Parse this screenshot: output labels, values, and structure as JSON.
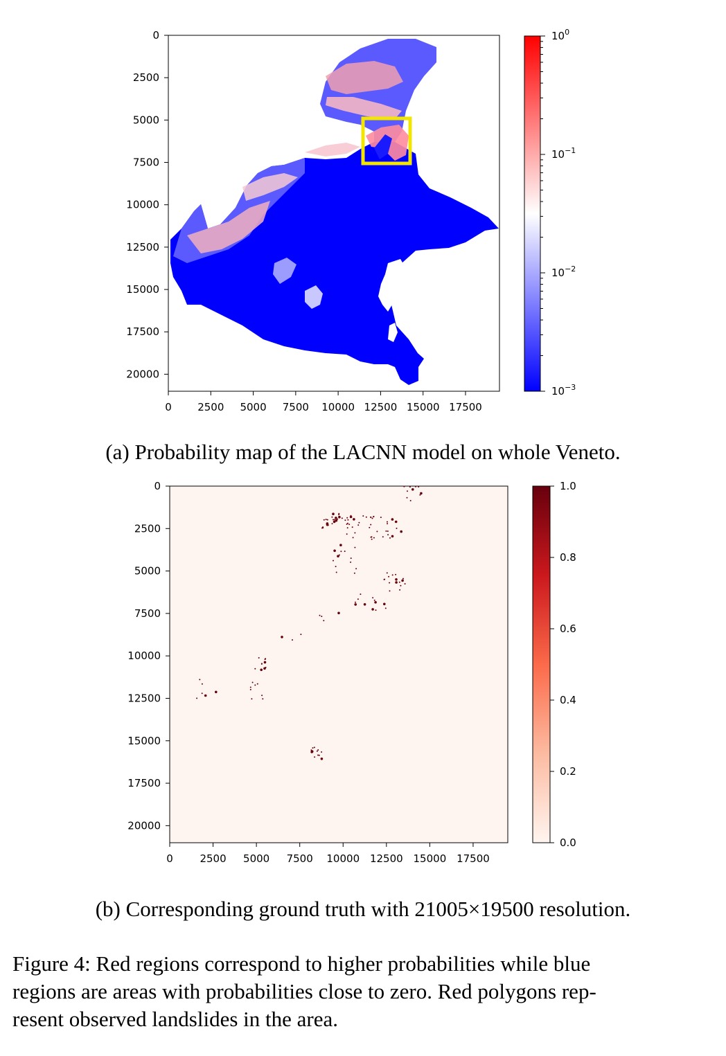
{
  "panel_a": {
    "caption": "(a) Probability map of the LACNN model on whole Veneto."
  },
  "panel_b": {
    "caption": "(b) Corresponding ground truth with 21005×19500 resolution."
  },
  "figure_caption": {
    "lines": [
      "Figure 4: Red regions correspond to higher probabilities while blue",
      "regions are areas with probabilities close to zero. Red polygons rep-",
      "resent observed landslides in the area."
    ]
  },
  "chart_data": [
    {
      "type": "heatmap",
      "title": "",
      "xlabel": "",
      "ylabel": "",
      "x_ticks": [
        "0",
        "2500",
        "5000",
        "7500",
        "10000",
        "12500",
        "15000",
        "17500"
      ],
      "y_ticks": [
        "0",
        "2500",
        "5000",
        "7500",
        "10000",
        "12500",
        "15000",
        "17500",
        "20000"
      ],
      "xlim": [
        0,
        19500
      ],
      "ylim": [
        21005,
        0
      ],
      "colorbar": {
        "scale": "log",
        "range": [
          0.001,
          1
        ],
        "ticks": [
          "10^0",
          "10^-1",
          "10^-2",
          "10^-3"
        ],
        "colormap": "bwr",
        "colors": [
          "#0000ff",
          "#ffffff",
          "#ff0000"
        ]
      },
      "highlight_box": {
        "color": "#f2e600"
      }
    },
    {
      "type": "heatmap",
      "title": "",
      "xlabel": "",
      "ylabel": "",
      "x_ticks": [
        "0",
        "2500",
        "5000",
        "7500",
        "10000",
        "12500",
        "15000",
        "17500"
      ],
      "y_ticks": [
        "0",
        "2500",
        "5000",
        "7500",
        "10000",
        "12500",
        "15000",
        "17500",
        "20000"
      ],
      "xlim": [
        0,
        19500
      ],
      "ylim": [
        21005,
        0
      ],
      "colorbar": {
        "scale": "linear",
        "range": [
          0.0,
          1.0
        ],
        "ticks": [
          "1.0",
          "0.8",
          "0.6",
          "0.4",
          "0.2",
          "0.0"
        ],
        "colormap": "Reds",
        "colors": [
          "#fff5f0",
          "#fcbba1",
          "#fb6a4a",
          "#cb181d",
          "#67000d"
        ]
      }
    }
  ]
}
